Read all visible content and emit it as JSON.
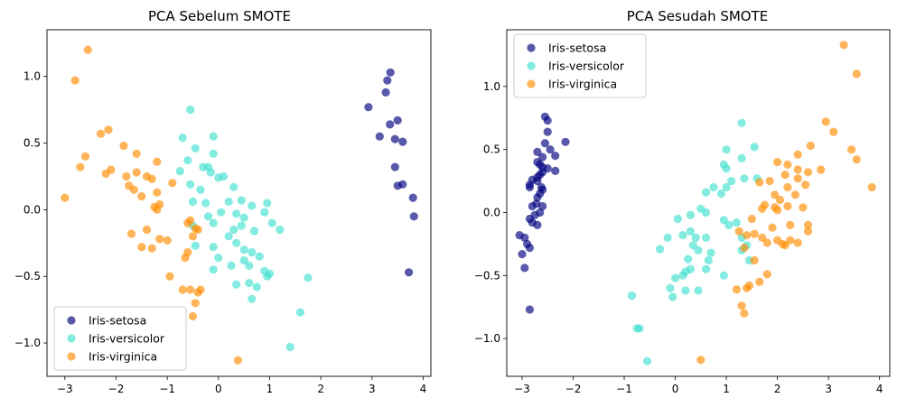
{
  "figure": {
    "series_styles": [
      {
        "color": "#000080"
      },
      {
        "color": "#40e0d0"
      },
      {
        "color": "#ff8c00"
      }
    ]
  },
  "chart_data": [
    {
      "type": "scatter",
      "title": "PCA Sebelum SMOTE",
      "xlabel": "",
      "ylabel": "",
      "xlim": [
        -3.35,
        4.15
      ],
      "ylim": [
        -1.25,
        1.35
      ],
      "xticks": [
        -3,
        -2,
        -1,
        0,
        1,
        2,
        3,
        4
      ],
      "yticks": [
        -1.0,
        -0.5,
        0.0,
        0.5,
        1.0
      ],
      "grid": false,
      "legend_position": "bottom-left",
      "series": [
        {
          "name": "Iris-setosa",
          "points": [
            [
              3.36,
              1.03
            ],
            [
              3.3,
              0.97
            ],
            [
              3.27,
              0.88
            ],
            [
              2.93,
              0.77
            ],
            [
              3.35,
              0.64
            ],
            [
              3.5,
              0.67
            ],
            [
              3.15,
              0.55
            ],
            [
              3.45,
              0.53
            ],
            [
              3.6,
              0.51
            ],
            [
              3.45,
              0.32
            ],
            [
              3.5,
              0.18
            ],
            [
              3.6,
              0.19
            ],
            [
              3.8,
              0.09
            ],
            [
              3.82,
              -0.05
            ],
            [
              3.72,
              -0.47
            ]
          ]
        },
        {
          "name": "Iris-versicolor",
          "points": [
            [
              -0.55,
              0.75
            ],
            [
              -0.7,
              0.54
            ],
            [
              -0.1,
              0.55
            ],
            [
              -0.45,
              0.46
            ],
            [
              -0.1,
              0.42
            ],
            [
              -0.6,
              0.37
            ],
            [
              -0.3,
              0.32
            ],
            [
              -0.2,
              0.32
            ],
            [
              -0.75,
              0.29
            ],
            [
              -0.15,
              0.28
            ],
            [
              0.0,
              0.24
            ],
            [
              0.1,
              0.25
            ],
            [
              -0.55,
              0.19
            ],
            [
              -0.35,
              0.15
            ],
            [
              0.3,
              0.17
            ],
            [
              -0.5,
              0.06
            ],
            [
              -0.25,
              0.05
            ],
            [
              0.2,
              0.06
            ],
            [
              0.45,
              0.07
            ],
            [
              0.65,
              0.03
            ],
            [
              0.05,
              -0.02
            ],
            [
              -0.2,
              -0.05
            ],
            [
              0.35,
              -0.03
            ],
            [
              0.5,
              -0.06
            ],
            [
              0.95,
              0.05
            ],
            [
              0.9,
              -0.02
            ],
            [
              1.05,
              -0.1
            ],
            [
              -0.5,
              -0.12
            ],
            [
              -0.1,
              -0.1
            ],
            [
              0.3,
              -0.15
            ],
            [
              0.45,
              -0.12
            ],
            [
              0.7,
              -0.16
            ],
            [
              1.2,
              -0.15
            ],
            [
              -0.45,
              -0.27
            ],
            [
              -0.1,
              -0.28
            ],
            [
              0.0,
              -0.36
            ],
            [
              0.2,
              -0.2
            ],
            [
              0.35,
              -0.25
            ],
            [
              0.5,
              -0.3
            ],
            [
              0.65,
              -0.32
            ],
            [
              0.8,
              -0.35
            ],
            [
              0.95,
              -0.5
            ],
            [
              0.25,
              -0.42
            ],
            [
              -0.1,
              -0.45
            ],
            [
              0.5,
              -0.38
            ],
            [
              0.6,
              -0.42
            ],
            [
              0.9,
              -0.46
            ],
            [
              1.0,
              -0.48
            ],
            [
              0.6,
              -0.55
            ],
            [
              0.75,
              -0.58
            ],
            [
              0.35,
              -0.56
            ],
            [
              0.65,
              -0.67
            ],
            [
              1.75,
              -0.51
            ],
            [
              1.6,
              -0.77
            ],
            [
              1.4,
              -1.03
            ]
          ]
        },
        {
          "name": "Iris-virginica",
          "points": [
            [
              -2.55,
              1.2
            ],
            [
              -2.8,
              0.97
            ],
            [
              -2.3,
              0.57
            ],
            [
              -2.15,
              0.6
            ],
            [
              -1.85,
              0.48
            ],
            [
              -1.6,
              0.42
            ],
            [
              -2.6,
              0.4
            ],
            [
              -2.7,
              0.32
            ],
            [
              -2.2,
              0.27
            ],
            [
              -2.1,
              0.3
            ],
            [
              -1.8,
              0.25
            ],
            [
              -1.6,
              0.28
            ],
            [
              -1.4,
              0.25
            ],
            [
              -1.2,
              0.36
            ],
            [
              -1.3,
              0.23
            ],
            [
              -0.9,
              0.2
            ],
            [
              -1.65,
              0.15
            ],
            [
              -1.5,
              0.1
            ],
            [
              -1.2,
              0.13
            ],
            [
              -1.25,
              0.02
            ],
            [
              -1.2,
              0.0
            ],
            [
              -1.15,
              0.04
            ],
            [
              -1.75,
              0.18
            ],
            [
              -3.0,
              0.09
            ],
            [
              -1.4,
              -0.15
            ],
            [
              -1.7,
              -0.18
            ],
            [
              -1.15,
              -0.22
            ],
            [
              -1.0,
              -0.23
            ],
            [
              -0.6,
              -0.1
            ],
            [
              -0.45,
              -0.14
            ],
            [
              -0.4,
              -0.15
            ],
            [
              -0.5,
              -0.2
            ],
            [
              -1.5,
              -0.28
            ],
            [
              -1.3,
              -0.29
            ],
            [
              -0.6,
              -0.32
            ],
            [
              -0.65,
              -0.36
            ],
            [
              -0.95,
              -0.5
            ],
            [
              -0.7,
              -0.6
            ],
            [
              -0.55,
              -0.6
            ],
            [
              -0.35,
              -0.6
            ],
            [
              -0.4,
              -0.62
            ],
            [
              -0.45,
              -0.7
            ],
            [
              -0.5,
              -0.8
            ],
            [
              0.38,
              -1.13
            ],
            [
              -0.55,
              -0.08
            ]
          ]
        }
      ]
    },
    {
      "type": "scatter",
      "title": "PCA Sesudah SMOTE",
      "xlabel": "",
      "ylabel": "",
      "xlim": [
        -3.3,
        4.2
      ],
      "ylim": [
        -1.3,
        1.45
      ],
      "xticks": [
        -3,
        -2,
        -1,
        0,
        1,
        2,
        3,
        4
      ],
      "yticks": [
        -1.0,
        -0.5,
        0.0,
        0.5,
        1.0
      ],
      "grid": false,
      "legend_position": "top-left",
      "series": [
        {
          "name": "Iris-setosa",
          "points": [
            [
              -2.55,
              0.76
            ],
            [
              -2.5,
              0.73
            ],
            [
              -2.5,
              0.64
            ],
            [
              -2.15,
              0.56
            ],
            [
              -2.55,
              0.55
            ],
            [
              -2.7,
              0.48
            ],
            [
              -2.45,
              0.5
            ],
            [
              -2.35,
              0.45
            ],
            [
              -2.6,
              0.44
            ],
            [
              -2.7,
              0.4
            ],
            [
              -2.65,
              0.38
            ],
            [
              -2.6,
              0.36
            ],
            [
              -2.5,
              0.35
            ],
            [
              -2.35,
              0.33
            ],
            [
              -2.6,
              0.32
            ],
            [
              -2.65,
              0.3
            ],
            [
              -2.7,
              0.28
            ],
            [
              -2.8,
              0.26
            ],
            [
              -2.85,
              0.22
            ],
            [
              -2.7,
              0.25
            ],
            [
              -2.6,
              0.18
            ],
            [
              -2.65,
              0.15
            ],
            [
              -2.7,
              0.12
            ],
            [
              -2.8,
              0.05
            ],
            [
              -2.6,
              0.05
            ],
            [
              -2.65,
              0.0
            ],
            [
              -2.75,
              -0.02
            ],
            [
              -2.85,
              -0.05
            ],
            [
              -2.8,
              -0.08
            ],
            [
              -2.7,
              -0.1
            ],
            [
              -3.05,
              -0.18
            ],
            [
              -2.95,
              -0.2
            ],
            [
              -2.9,
              -0.25
            ],
            [
              -2.85,
              -0.28
            ],
            [
              -3.0,
              -0.33
            ],
            [
              -2.95,
              -0.44
            ],
            [
              -2.85,
              -0.77
            ],
            [
              -2.85,
              0.2
            ],
            [
              -2.62,
              0.2
            ],
            [
              -2.72,
              0.07
            ]
          ]
        },
        {
          "name": "Iris-versicolor",
          "points": [
            [
              1.3,
              0.71
            ],
            [
              1.0,
              0.5
            ],
            [
              1.55,
              0.52
            ],
            [
              1.3,
              0.43
            ],
            [
              0.95,
              0.38
            ],
            [
              1.0,
              0.35
            ],
            [
              1.35,
              0.27
            ],
            [
              1.6,
              0.27
            ],
            [
              1.1,
              0.25
            ],
            [
              1.0,
              0.2
            ],
            [
              0.75,
              0.2
            ],
            [
              0.6,
              0.16
            ],
            [
              0.9,
              0.15
            ],
            [
              0.5,
              0.03
            ],
            [
              0.3,
              -0.02
            ],
            [
              0.6,
              0.0
            ],
            [
              1.05,
              -0.1
            ],
            [
              0.95,
              -0.06
            ],
            [
              1.2,
              -0.08
            ],
            [
              0.05,
              -0.05
            ],
            [
              0.15,
              -0.18
            ],
            [
              0.3,
              -0.15
            ],
            [
              -0.15,
              -0.2
            ],
            [
              0.4,
              -0.2
            ],
            [
              0.6,
              -0.2
            ],
            [
              1.3,
              -0.2
            ],
            [
              0.35,
              -0.26
            ],
            [
              0.45,
              -0.3
            ],
            [
              1.3,
              -0.3
            ],
            [
              -0.3,
              -0.29
            ],
            [
              0.7,
              -0.32
            ],
            [
              1.4,
              -0.26
            ],
            [
              0.25,
              -0.37
            ],
            [
              0.65,
              -0.38
            ],
            [
              0.15,
              -0.5
            ],
            [
              0.3,
              -0.45
            ],
            [
              0.0,
              -0.52
            ],
            [
              0.6,
              -0.45
            ],
            [
              0.95,
              -0.5
            ],
            [
              0.2,
              -0.47
            ],
            [
              1.45,
              -0.38
            ],
            [
              0.45,
              -0.62
            ],
            [
              -0.1,
              -0.6
            ],
            [
              0.2,
              -0.62
            ],
            [
              -0.05,
              -0.67
            ],
            [
              -0.85,
              -0.66
            ],
            [
              -0.7,
              -0.92
            ],
            [
              -0.75,
              -0.92
            ],
            [
              -0.55,
              -1.18
            ]
          ]
        },
        {
          "name": "Iris-virginica",
          "points": [
            [
              3.3,
              1.33
            ],
            [
              3.55,
              1.1
            ],
            [
              2.95,
              0.72
            ],
            [
              3.1,
              0.64
            ],
            [
              2.65,
              0.53
            ],
            [
              3.45,
              0.5
            ],
            [
              2.4,
              0.46
            ],
            [
              2.0,
              0.4
            ],
            [
              2.2,
              0.38
            ],
            [
              3.55,
              0.42
            ],
            [
              2.4,
              0.34
            ],
            [
              2.6,
              0.32
            ],
            [
              2.85,
              0.34
            ],
            [
              2.15,
              0.3
            ],
            [
              2.4,
              0.27
            ],
            [
              2.55,
              0.22
            ],
            [
              1.85,
              0.25
            ],
            [
              2.2,
              0.2
            ],
            [
              3.85,
              0.2
            ],
            [
              1.65,
              0.24
            ],
            [
              1.95,
              0.14
            ],
            [
              2.35,
              0.14
            ],
            [
              2.05,
              0.1
            ],
            [
              1.75,
              0.06
            ],
            [
              2.0,
              0.02
            ],
            [
              1.95,
              0.04
            ],
            [
              1.7,
              0.03
            ],
            [
              2.2,
              0.05
            ],
            [
              2.5,
              0.04
            ],
            [
              1.5,
              -0.05
            ],
            [
              1.25,
              -0.15
            ],
            [
              1.55,
              -0.17
            ],
            [
              1.9,
              -0.12
            ],
            [
              2.25,
              -0.1
            ],
            [
              2.6,
              -0.1
            ],
            [
              2.6,
              -0.15
            ],
            [
              1.4,
              -0.18
            ],
            [
              1.7,
              -0.2
            ],
            [
              2.0,
              -0.22
            ],
            [
              2.25,
              -0.22
            ],
            [
              2.4,
              -0.24
            ],
            [
              1.8,
              -0.24
            ],
            [
              1.35,
              -0.28
            ],
            [
              2.1,
              -0.25
            ],
            [
              2.15,
              -0.26
            ],
            [
              1.55,
              -0.38
            ],
            [
              1.8,
              -0.49
            ],
            [
              1.65,
              -0.55
            ],
            [
              1.45,
              -0.58
            ],
            [
              1.4,
              -0.6
            ],
            [
              1.2,
              -0.61
            ],
            [
              1.3,
              -0.74
            ],
            [
              1.35,
              -0.8
            ],
            [
              0.5,
              -1.17
            ]
          ]
        }
      ]
    }
  ]
}
